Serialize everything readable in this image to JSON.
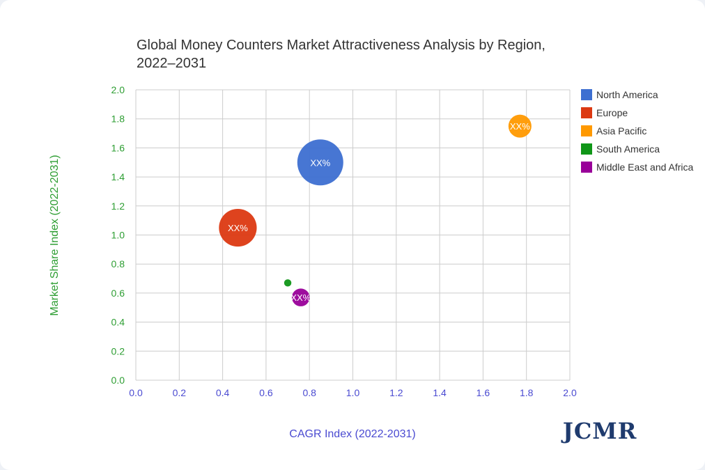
{
  "chart_data": {
    "type": "bubble",
    "title": "Global Money Counters Market Attractiveness Analysis by Region, 2022–2031",
    "xlabel": "CAGR Index (2022-2031)",
    "ylabel": "Market Share Index (2022-2031)",
    "xlim": [
      0.0,
      2.0
    ],
    "ylim": [
      0.0,
      2.0
    ],
    "x_ticks": [
      "0.0",
      "0.2",
      "0.4",
      "0.6",
      "0.8",
      "1.0",
      "1.2",
      "1.4",
      "1.6",
      "1.8",
      "2.0"
    ],
    "y_ticks": [
      "0.0",
      "0.2",
      "0.4",
      "0.6",
      "0.8",
      "1.0",
      "1.2",
      "1.4",
      "1.6",
      "1.8",
      "2.0"
    ],
    "grid": true,
    "legend_position": "right",
    "series": [
      {
        "name": "North America",
        "color": "#3d6fd1",
        "x": 0.85,
        "y": 1.5,
        "size": 4.0,
        "label": "XX%"
      },
      {
        "name": "Europe",
        "color": "#dc3912",
        "x": 0.47,
        "y": 1.05,
        "size": 2.7,
        "label": "XX%"
      },
      {
        "name": "Asia Pacific",
        "color": "#ff9900",
        "x": 1.77,
        "y": 1.75,
        "size": 1.0,
        "label": "XX%"
      },
      {
        "name": "South America",
        "color": "#109618",
        "x": 0.7,
        "y": 0.67,
        "size": 0.1,
        "label": ""
      },
      {
        "name": "Middle East and Africa",
        "color": "#990099",
        "x": 0.76,
        "y": 0.57,
        "size": 0.6,
        "label": "XX%"
      }
    ]
  },
  "logo_text": "JCMR"
}
